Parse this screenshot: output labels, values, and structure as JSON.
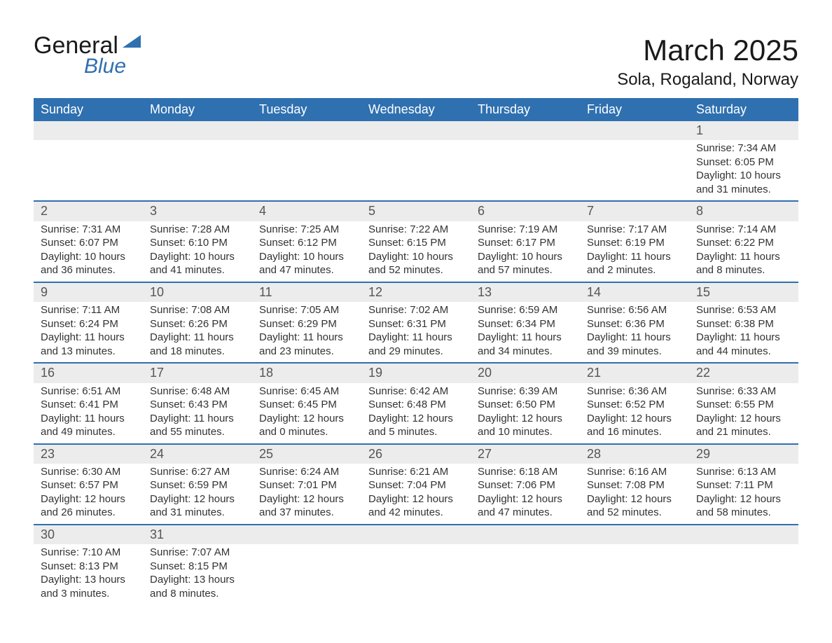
{
  "logo": {
    "text_general": "General",
    "text_blue": "Blue",
    "icon_color": "#2f70b0"
  },
  "title": {
    "month": "March 2025",
    "location": "Sola, Rogaland, Norway"
  },
  "colors": {
    "header_bg": "#2f70b0",
    "header_text": "#ffffff",
    "daynum_bg": "#ececec",
    "daynum_border": "#2f70b0",
    "body_text": "#333333",
    "page_bg": "#ffffff"
  },
  "typography": {
    "title_fontsize": 42,
    "location_fontsize": 24,
    "header_fontsize": 18,
    "daynum_fontsize": 18,
    "body_fontsize": 15,
    "logo_fontsize": 34
  },
  "weekdays": [
    "Sunday",
    "Monday",
    "Tuesday",
    "Wednesday",
    "Thursday",
    "Friday",
    "Saturday"
  ],
  "labels": {
    "sunrise": "Sunrise:",
    "sunset": "Sunset:",
    "daylight": "Daylight:"
  },
  "weeks": [
    [
      null,
      null,
      null,
      null,
      null,
      null,
      {
        "n": "1",
        "sr": "7:34 AM",
        "ss": "6:05 PM",
        "dl1": "10 hours",
        "dl2": "and 31 minutes."
      }
    ],
    [
      {
        "n": "2",
        "sr": "7:31 AM",
        "ss": "6:07 PM",
        "dl1": "10 hours",
        "dl2": "and 36 minutes."
      },
      {
        "n": "3",
        "sr": "7:28 AM",
        "ss": "6:10 PM",
        "dl1": "10 hours",
        "dl2": "and 41 minutes."
      },
      {
        "n": "4",
        "sr": "7:25 AM",
        "ss": "6:12 PM",
        "dl1": "10 hours",
        "dl2": "and 47 minutes."
      },
      {
        "n": "5",
        "sr": "7:22 AM",
        "ss": "6:15 PM",
        "dl1": "10 hours",
        "dl2": "and 52 minutes."
      },
      {
        "n": "6",
        "sr": "7:19 AM",
        "ss": "6:17 PM",
        "dl1": "10 hours",
        "dl2": "and 57 minutes."
      },
      {
        "n": "7",
        "sr": "7:17 AM",
        "ss": "6:19 PM",
        "dl1": "11 hours",
        "dl2": "and 2 minutes."
      },
      {
        "n": "8",
        "sr": "7:14 AM",
        "ss": "6:22 PM",
        "dl1": "11 hours",
        "dl2": "and 8 minutes."
      }
    ],
    [
      {
        "n": "9",
        "sr": "7:11 AM",
        "ss": "6:24 PM",
        "dl1": "11 hours",
        "dl2": "and 13 minutes."
      },
      {
        "n": "10",
        "sr": "7:08 AM",
        "ss": "6:26 PM",
        "dl1": "11 hours",
        "dl2": "and 18 minutes."
      },
      {
        "n": "11",
        "sr": "7:05 AM",
        "ss": "6:29 PM",
        "dl1": "11 hours",
        "dl2": "and 23 minutes."
      },
      {
        "n": "12",
        "sr": "7:02 AM",
        "ss": "6:31 PM",
        "dl1": "11 hours",
        "dl2": "and 29 minutes."
      },
      {
        "n": "13",
        "sr": "6:59 AM",
        "ss": "6:34 PM",
        "dl1": "11 hours",
        "dl2": "and 34 minutes."
      },
      {
        "n": "14",
        "sr": "6:56 AM",
        "ss": "6:36 PM",
        "dl1": "11 hours",
        "dl2": "and 39 minutes."
      },
      {
        "n": "15",
        "sr": "6:53 AM",
        "ss": "6:38 PM",
        "dl1": "11 hours",
        "dl2": "and 44 minutes."
      }
    ],
    [
      {
        "n": "16",
        "sr": "6:51 AM",
        "ss": "6:41 PM",
        "dl1": "11 hours",
        "dl2": "and 49 minutes."
      },
      {
        "n": "17",
        "sr": "6:48 AM",
        "ss": "6:43 PM",
        "dl1": "11 hours",
        "dl2": "and 55 minutes."
      },
      {
        "n": "18",
        "sr": "6:45 AM",
        "ss": "6:45 PM",
        "dl1": "12 hours",
        "dl2": "and 0 minutes."
      },
      {
        "n": "19",
        "sr": "6:42 AM",
        "ss": "6:48 PM",
        "dl1": "12 hours",
        "dl2": "and 5 minutes."
      },
      {
        "n": "20",
        "sr": "6:39 AM",
        "ss": "6:50 PM",
        "dl1": "12 hours",
        "dl2": "and 10 minutes."
      },
      {
        "n": "21",
        "sr": "6:36 AM",
        "ss": "6:52 PM",
        "dl1": "12 hours",
        "dl2": "and 16 minutes."
      },
      {
        "n": "22",
        "sr": "6:33 AM",
        "ss": "6:55 PM",
        "dl1": "12 hours",
        "dl2": "and 21 minutes."
      }
    ],
    [
      {
        "n": "23",
        "sr": "6:30 AM",
        "ss": "6:57 PM",
        "dl1": "12 hours",
        "dl2": "and 26 minutes."
      },
      {
        "n": "24",
        "sr": "6:27 AM",
        "ss": "6:59 PM",
        "dl1": "12 hours",
        "dl2": "and 31 minutes."
      },
      {
        "n": "25",
        "sr": "6:24 AM",
        "ss": "7:01 PM",
        "dl1": "12 hours",
        "dl2": "and 37 minutes."
      },
      {
        "n": "26",
        "sr": "6:21 AM",
        "ss": "7:04 PM",
        "dl1": "12 hours",
        "dl2": "and 42 minutes."
      },
      {
        "n": "27",
        "sr": "6:18 AM",
        "ss": "7:06 PM",
        "dl1": "12 hours",
        "dl2": "and 47 minutes."
      },
      {
        "n": "28",
        "sr": "6:16 AM",
        "ss": "7:08 PM",
        "dl1": "12 hours",
        "dl2": "and 52 minutes."
      },
      {
        "n": "29",
        "sr": "6:13 AM",
        "ss": "7:11 PM",
        "dl1": "12 hours",
        "dl2": "and 58 minutes."
      }
    ],
    [
      {
        "n": "30",
        "sr": "7:10 AM",
        "ss": "8:13 PM",
        "dl1": "13 hours",
        "dl2": "and 3 minutes."
      },
      {
        "n": "31",
        "sr": "7:07 AM",
        "ss": "8:15 PM",
        "dl1": "13 hours",
        "dl2": "and 8 minutes."
      },
      null,
      null,
      null,
      null,
      null
    ]
  ]
}
